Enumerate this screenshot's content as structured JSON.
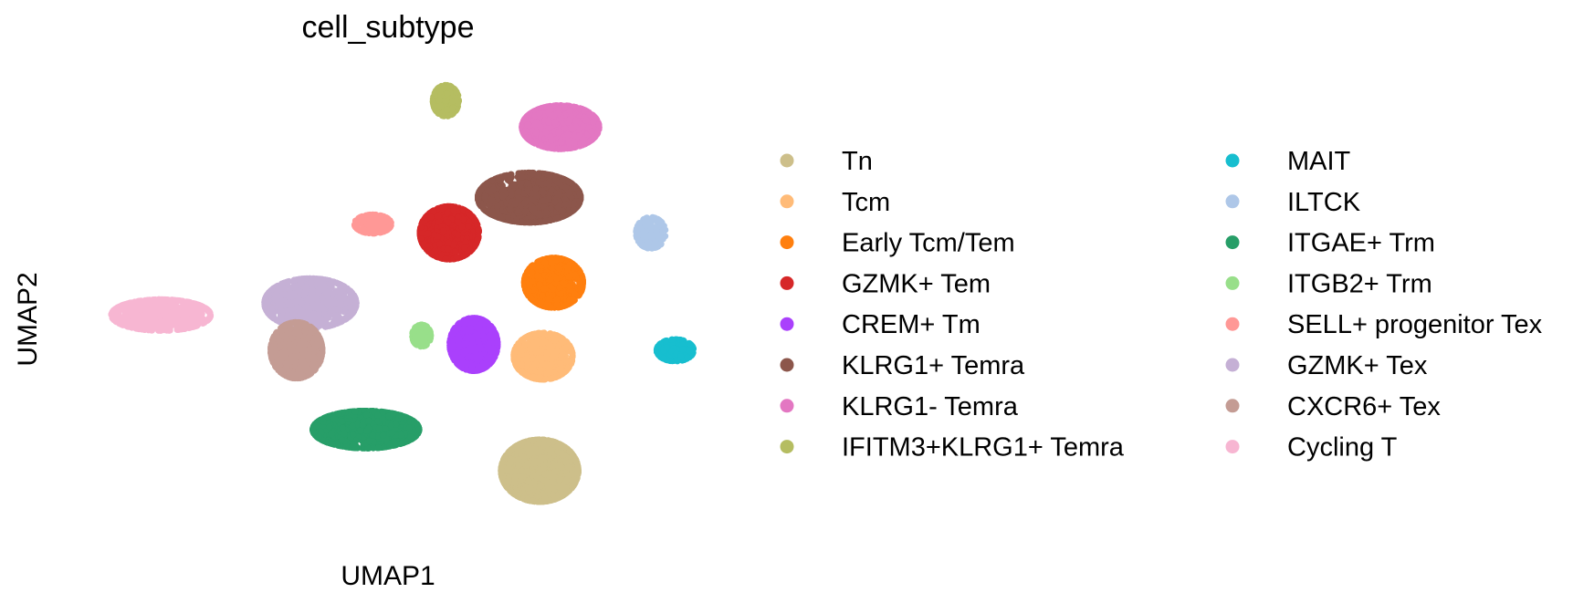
{
  "chart_data": {
    "type": "scatter",
    "title": "cell_subtype",
    "xlabel": "UMAP1",
    "ylabel": "UMAP2",
    "grid": false,
    "axes_visible": false,
    "legend_position": "right",
    "legend_columns": 2,
    "series": [
      {
        "name": "Tn",
        "color": "#cdbf8a",
        "center": [
          5.3,
          -4.7
        ],
        "spread": [
          1.05,
          1.0
        ],
        "n": 1500
      },
      {
        "name": "Tcm",
        "color": "#ffbb78",
        "center": [
          5.4,
          -0.8
        ],
        "spread": [
          0.8,
          0.75
        ],
        "n": 700
      },
      {
        "name": "Early Tcm/Tem",
        "color": "#ff7f0e",
        "center": [
          5.7,
          1.7
        ],
        "spread": [
          0.8,
          0.8
        ],
        "n": 750
      },
      {
        "name": "GZMK+ Tem",
        "color": "#d62728",
        "center": [
          2.7,
          3.4
        ],
        "spread": [
          0.8,
          0.85
        ],
        "n": 800
      },
      {
        "name": "CREM+ Tm",
        "color": "#aa40fc",
        "center": [
          3.4,
          -0.4
        ],
        "spread": [
          0.65,
          0.85
        ],
        "n": 650
      },
      {
        "name": "KLRG1+ Temra",
        "color": "#8c564b",
        "center": [
          5.0,
          4.6
        ],
        "spread": [
          1.4,
          0.8
        ],
        "n": 1300
      },
      {
        "name": "KLRG1- Temra",
        "color": "#e377c2",
        "center": [
          5.9,
          7.0
        ],
        "spread": [
          1.05,
          0.7
        ],
        "n": 1000
      },
      {
        "name": "IFITM3+KLRG1+ Temra",
        "color": "#b5bd61",
        "center": [
          2.6,
          7.9
        ],
        "spread": [
          0.35,
          0.5
        ],
        "n": 220
      },
      {
        "name": "MAIT",
        "color": "#17becf",
        "center": [
          9.2,
          -0.6
        ],
        "spread": [
          0.5,
          0.35
        ],
        "n": 320
      },
      {
        "name": "ILTCK",
        "color": "#aec7e8",
        "center": [
          8.5,
          3.4
        ],
        "spread": [
          0.4,
          0.5
        ],
        "n": 180
      },
      {
        "name": "ITGAE+ Trm",
        "color": "#279e68",
        "center": [
          0.3,
          -3.3
        ],
        "spread": [
          1.45,
          0.6
        ],
        "n": 1100
      },
      {
        "name": "ITGB2+ Trm",
        "color": "#98df8a",
        "center": [
          1.9,
          -0.1
        ],
        "spread": [
          0.25,
          0.35
        ],
        "n": 150
      },
      {
        "name": "SELL+ progenitor Tex",
        "color": "#ff9896",
        "center": [
          0.5,
          3.7
        ],
        "spread": [
          0.5,
          0.3
        ],
        "n": 160
      },
      {
        "name": "GZMK+ Tex",
        "color": "#c5b0d5",
        "center": [
          -1.3,
          1.0
        ],
        "spread": [
          1.25,
          0.8
        ],
        "n": 1100
      },
      {
        "name": "CXCR6+ Tex",
        "color": "#c49c94",
        "center": [
          -1.7,
          -0.6
        ],
        "spread": [
          0.7,
          0.9
        ],
        "n": 700
      },
      {
        "name": "Cycling T",
        "color": "#f7b6d2",
        "center": [
          -5.6,
          0.6
        ],
        "spread": [
          1.35,
          0.5
        ],
        "n": 650
      }
    ]
  }
}
